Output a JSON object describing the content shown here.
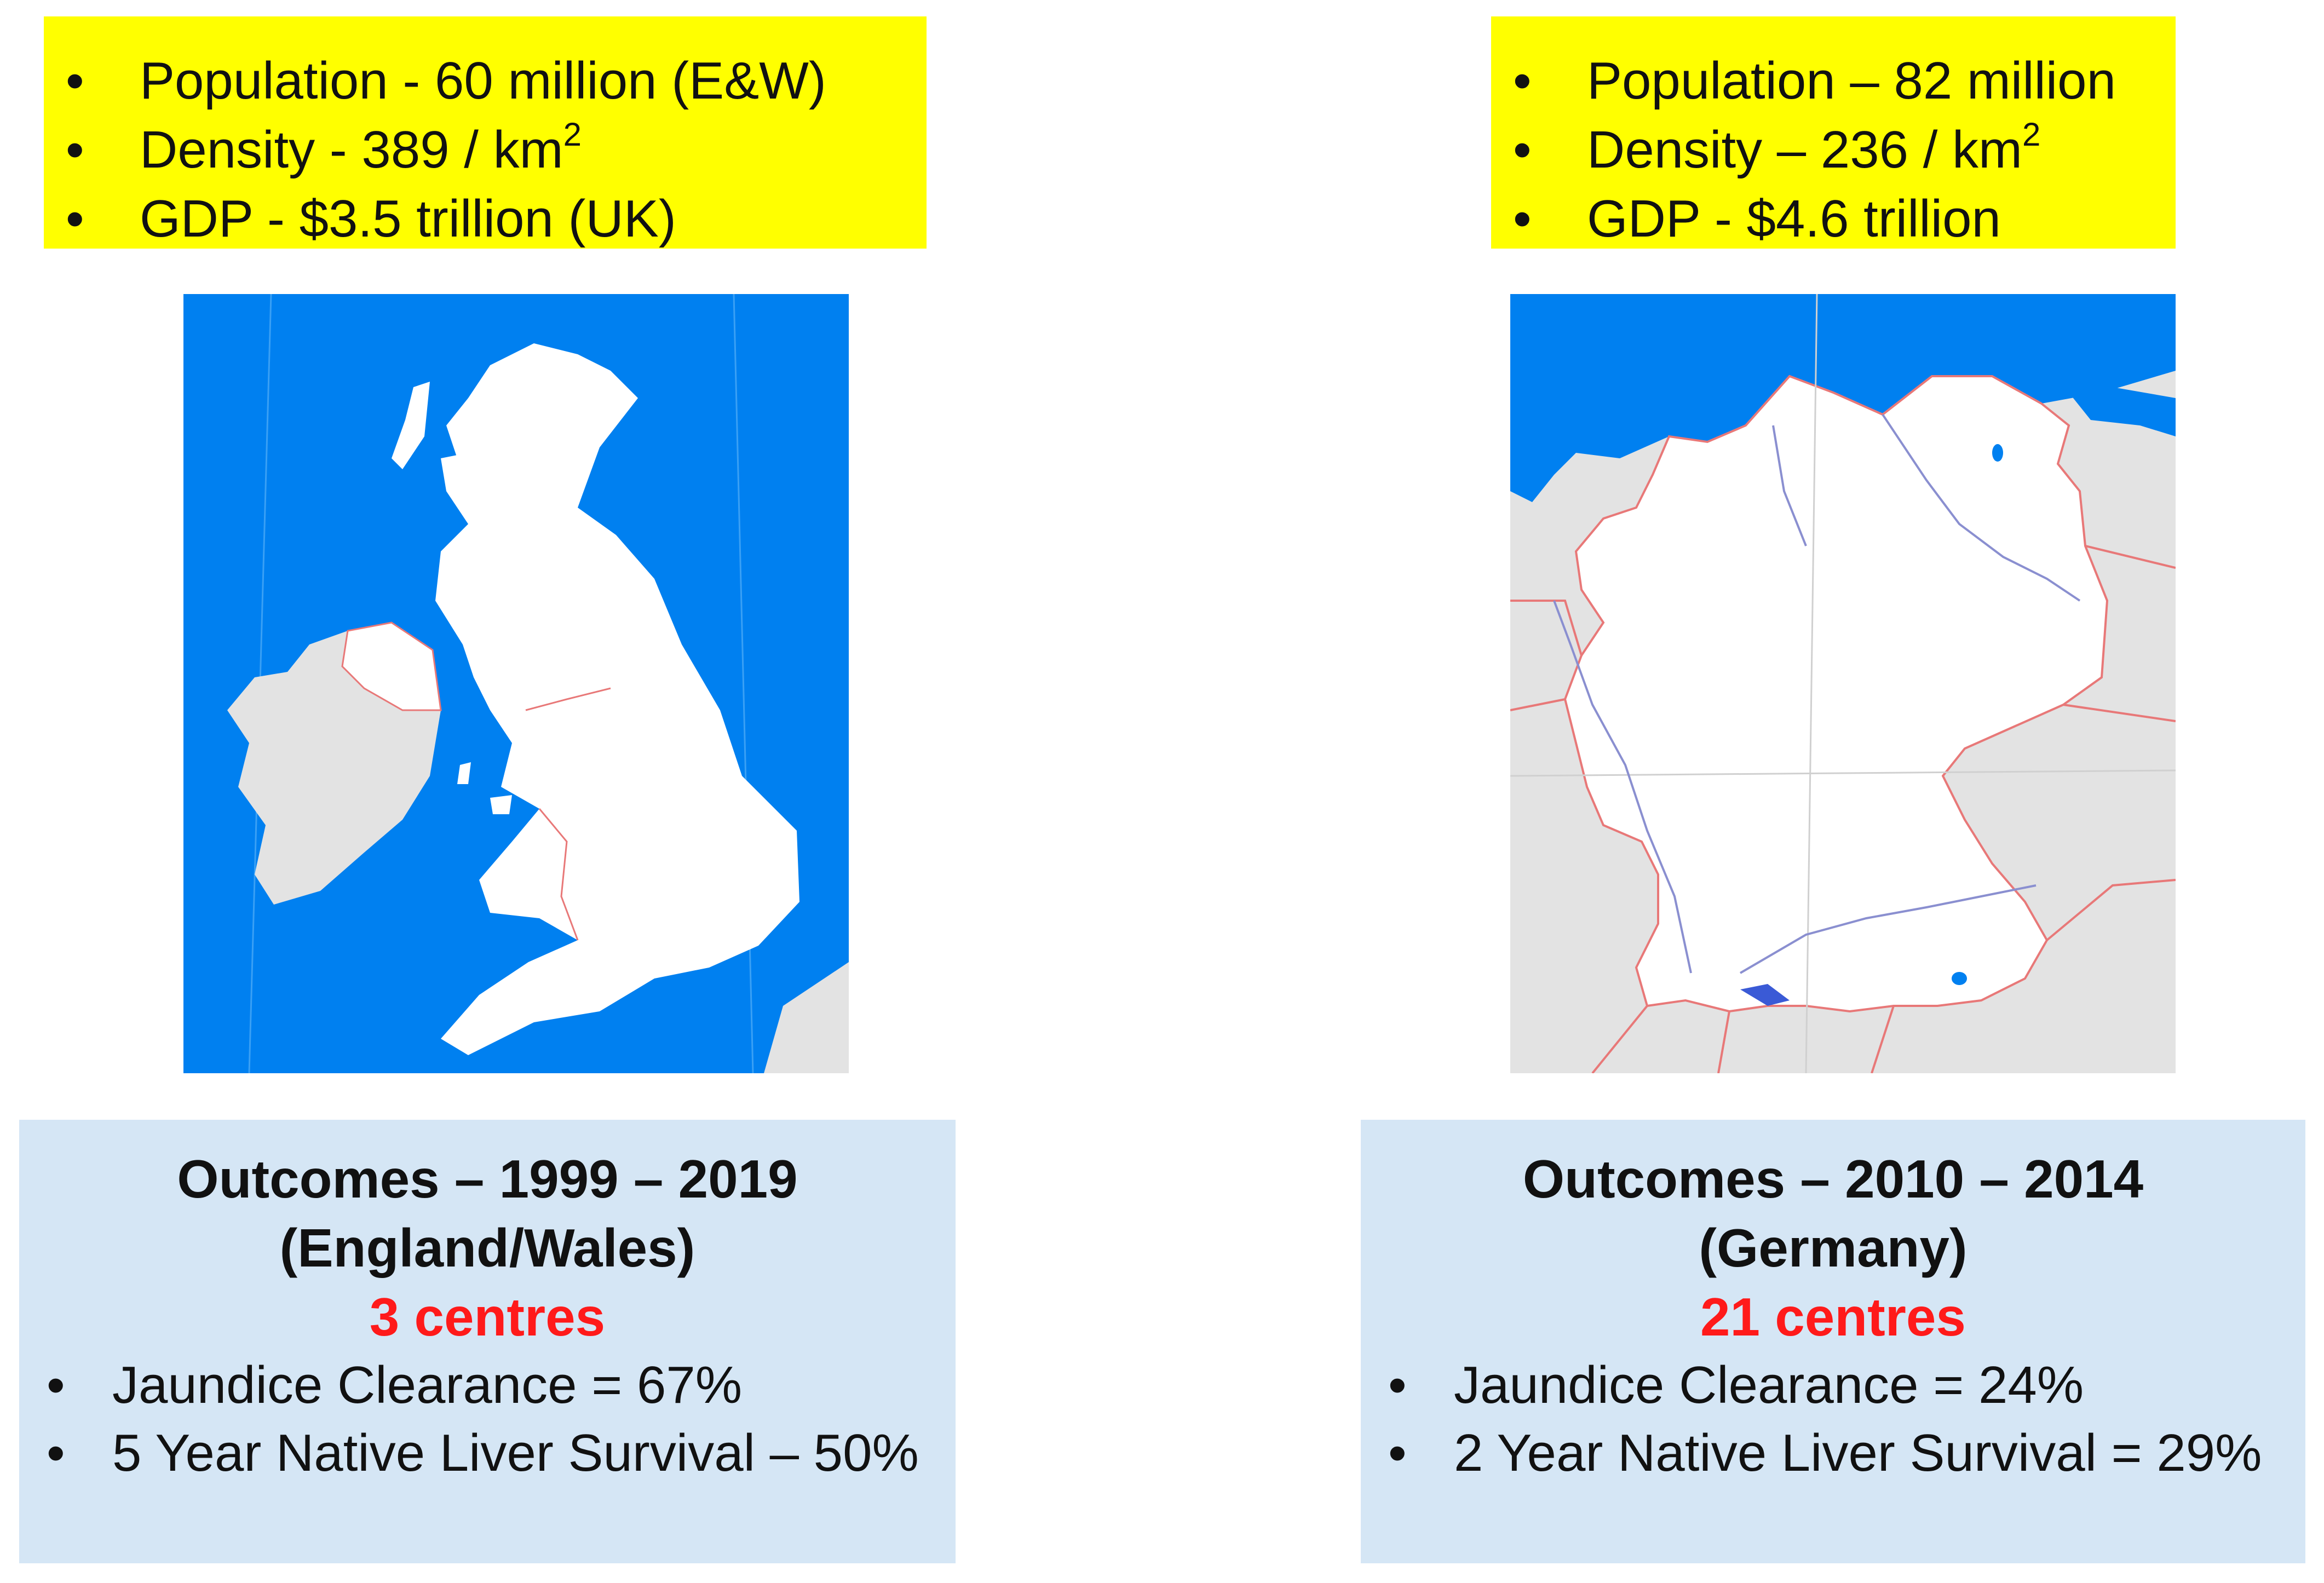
{
  "left_panel": {
    "stats": [
      {
        "text": "Population   - 60  million (E&W)",
        "sup": ""
      },
      {
        "text": "Density -  389 / km",
        "sup": "2"
      },
      {
        "text": "GDP - $3.5 trillion (UK)",
        "sup": ""
      }
    ],
    "outcomes": {
      "title_line1": "Outcomes – 1999 – 2019",
      "title_line2": "(England/Wales)",
      "centres": "3 centres",
      "items": [
        "Jaundice Clearance = 67%",
        "5 Year Native Liver Survival – 50%"
      ]
    }
  },
  "right_panel": {
    "stats": [
      {
        "text": "Population – 82 million",
        "sup": ""
      },
      {
        "text": "Density – 236 / km",
        "sup": "2"
      },
      {
        "text": "GDP -  $4.6 trillion",
        "sup": ""
      }
    ],
    "outcomes": {
      "title_line1": "Outcomes – 2010 – 2014",
      "title_line2": "(Germany)",
      "centres": "21 centres",
      "items": [
        "Jaundice Clearance = 24%",
        "2 Year Native Liver Survival = 29%"
      ]
    }
  },
  "colors": {
    "stats_background": "#ffff00",
    "outcomes_background": "#d5e6f5",
    "centres_text": "#ff1a1a",
    "sea": "#0080f0",
    "land_highlight": "#ffffff",
    "land_other": "#e3e3e3",
    "borders": "#e87878",
    "rivers": "#8a8fd0"
  }
}
